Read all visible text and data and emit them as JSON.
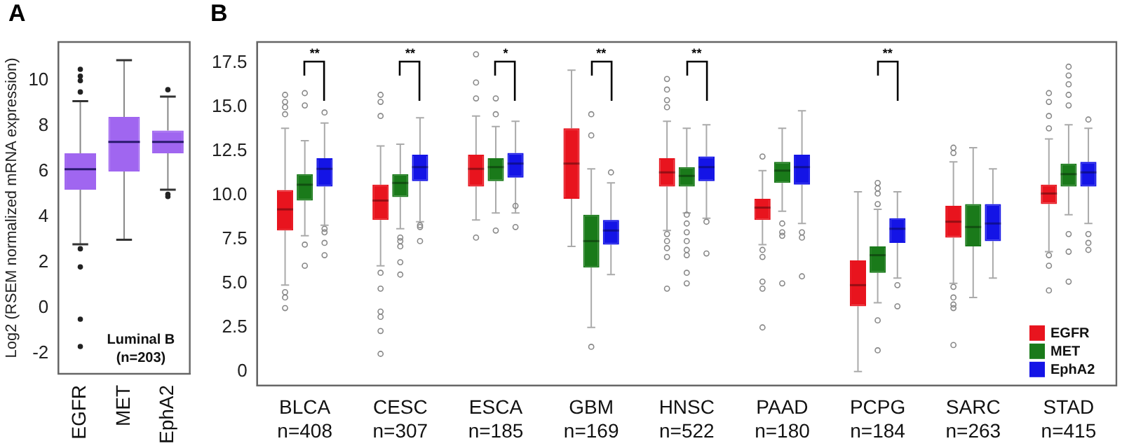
{
  "chart_data": [
    {
      "type": "box",
      "title": "A",
      "ylabel": "Log2 (RSEM normalized mRNA expression)",
      "categories": [
        "EGFR",
        "MET",
        "EphA2"
      ],
      "color": "#a066f0",
      "boxes": [
        {
          "low": 2.8,
          "q1": 5.2,
          "median": 6.1,
          "q3": 6.8,
          "high": 9.1,
          "outliers": [
            10.5,
            10.2,
            10.0,
            9.5,
            2.6,
            1.8,
            -0.5,
            -1.7
          ]
        },
        {
          "low": 3.0,
          "q1": 6.0,
          "median": 7.3,
          "q3": 8.4,
          "high": 10.9
        },
        {
          "low": 5.2,
          "q1": 6.8,
          "median": 7.3,
          "q3": 7.8,
          "high": 9.3,
          "outliers": [
            9.6,
            5.0,
            4.9
          ]
        }
      ],
      "ylim": [
        -2.9,
        11.7
      ],
      "yticks": [
        -2,
        0,
        2,
        4,
        6,
        8,
        10
      ],
      "grid": false,
      "legend": false,
      "annotations": [
        "Luminal B\n(n=203)"
      ]
    },
    {
      "type": "box",
      "title": "B",
      "categories": [
        "BLCA\nn=408",
        "CESC\nn=307",
        "ESCA\nn=185",
        "GBM\nn=169",
        "HNSC\nn=522",
        "PAAD\nn=180",
        "PCPG\nn=184",
        "SARC\nn=263",
        "STAD\nn=415"
      ],
      "series": [
        {
          "name": "EGFR",
          "color": "#e8141e",
          "boxes": [
            {
              "low": 4.9,
              "q1": 8.0,
              "median": 9.2,
              "q3": 10.3,
              "high": 13.8,
              "outliers": [
                15.7,
                15.3,
                15.0,
                14.6,
                4.5,
                4.2,
                3.6
              ]
            },
            {
              "low": 6.0,
              "q1": 8.6,
              "median": 9.7,
              "q3": 10.6,
              "high": 12.8,
              "outliers": [
                15.7,
                15.3,
                14.5,
                5.6,
                4.7,
                3.4,
                3.1,
                2.3,
                1.0
              ]
            },
            {
              "low": 8.6,
              "q1": 10.5,
              "median": 11.5,
              "q3": 12.3,
              "high": 14.5,
              "outliers": [
                18.0,
                16.4,
                15.5,
                7.6
              ]
            },
            {
              "low": 7.1,
              "q1": 9.8,
              "median": 11.8,
              "q3": 13.8,
              "high": 17.1
            },
            {
              "low": 8.0,
              "q1": 10.5,
              "median": 11.3,
              "q3": 12.1,
              "high": 14.2,
              "outliers": [
                16.6,
                16.0,
                15.4,
                15.0,
                7.8,
                7.4,
                7.0,
                6.5,
                4.7
              ]
            },
            {
              "low": 7.2,
              "q1": 8.6,
              "median": 9.3,
              "q3": 9.8,
              "high": 11.4,
              "outliers": [
                12.2,
                6.9,
                6.5,
                5.1,
                4.7,
                2.5
              ]
            },
            {
              "low": 0.0,
              "q1": 3.7,
              "median": 4.9,
              "q3": 6.3,
              "high": 10.2
            },
            {
              "low": 5.0,
              "q1": 7.6,
              "median": 8.5,
              "q3": 9.4,
              "high": 11.9,
              "outliers": [
                12.7,
                12.4,
                4.8,
                4.2,
                3.8,
                3.6,
                1.5
              ]
            },
            {
              "low": 6.8,
              "q1": 9.5,
              "median": 10.1,
              "q3": 10.6,
              "high": 13.2,
              "outliers": [
                15.8,
                15.3,
                14.5,
                13.8,
                6.6,
                6.0,
                4.6
              ]
            }
          ]
        },
        {
          "name": "MET",
          "color": "#1a7a1a",
          "boxes": [
            {
              "low": 7.7,
              "q1": 9.7,
              "median": 10.6,
              "q3": 11.2,
              "high": 13.1,
              "outliers": [
                15.8,
                15.1,
                7.2,
                6.0
              ]
            },
            {
              "low": 8.1,
              "q1": 9.9,
              "median": 10.7,
              "q3": 11.2,
              "high": 12.9,
              "outliers": [
                7.6,
                7.4,
                7.1,
                6.2,
                5.5
              ]
            },
            {
              "low": 9.0,
              "q1": 10.8,
              "median": 11.6,
              "q3": 12.1,
              "high": 13.9,
              "outliers": [
                15.5,
                14.6,
                8.0
              ]
            },
            {
              "low": 2.5,
              "q1": 5.9,
              "median": 7.4,
              "q3": 8.9,
              "high": 11.5,
              "outliers": [
                14.6,
                13.4,
                1.4
              ]
            },
            {
              "low": 9.0,
              "q1": 10.5,
              "median": 11.1,
              "q3": 11.6,
              "high": 13.8,
              "outliers": [
                8.9,
                8.4,
                7.9,
                7.4,
                6.9,
                6.6,
                5.6,
                5.0
              ]
            },
            {
              "low": 9.1,
              "q1": 10.7,
              "median": 11.4,
              "q3": 11.9,
              "high": 13.8,
              "outliers": [
                8.4,
                7.9,
                7.7,
                5.0
              ]
            },
            {
              "low": 3.9,
              "q1": 5.6,
              "median": 6.6,
              "q3": 7.1,
              "high": 9.2,
              "outliers": [
                10.7,
                10.4,
                10.1,
                9.5,
                2.9,
                1.2
              ]
            },
            {
              "low": 4.2,
              "q1": 7.1,
              "median": 8.2,
              "q3": 9.5,
              "high": 12.7
            },
            {
              "low": 8.9,
              "q1": 10.5,
              "median": 11.2,
              "q3": 11.8,
              "high": 14.0,
              "outliers": [
                17.3,
                16.8,
                16.3,
                15.7,
                15.1,
                7.8,
                6.8,
                5.1
              ]
            }
          ]
        },
        {
          "name": "EphA2",
          "color": "#1414e6",
          "boxes": [
            {
              "low": 8.3,
              "q1": 10.5,
              "median": 11.5,
              "q3": 12.1,
              "high": 14.1,
              "outliers": [
                14.7,
                8.1,
                7.9,
                7.3,
                6.6
              ]
            },
            {
              "low": 8.5,
              "q1": 10.8,
              "median": 11.6,
              "q3": 12.3,
              "high": 14.4,
              "outliers": [
                8.3,
                8.2,
                7.4
              ]
            },
            {
              "low": 9.0,
              "q1": 11.0,
              "median": 11.8,
              "q3": 12.4,
              "high": 14.2,
              "outliers": [
                9.4,
                8.2
              ]
            },
            {
              "low": 5.5,
              "q1": 7.2,
              "median": 8.0,
              "q3": 8.6,
              "high": 10.7,
              "outliers": [
                11.3
              ]
            },
            {
              "low": 8.7,
              "q1": 10.8,
              "median": 11.6,
              "q3": 12.2,
              "high": 14.0,
              "outliers": [
                8.5,
                6.7
              ]
            },
            {
              "low": 8.4,
              "q1": 10.6,
              "median": 11.6,
              "q3": 12.3,
              "high": 14.8,
              "outliers": [
                7.9,
                7.6,
                5.4
              ]
            },
            {
              "low": 5.3,
              "q1": 7.3,
              "median": 8.1,
              "q3": 8.7,
              "high": 10.2,
              "outliers": [
                4.9,
                3.7
              ]
            },
            {
              "low": 5.3,
              "q1": 7.4,
              "median": 8.4,
              "q3": 9.5,
              "high": 11.5
            },
            {
              "low": 8.4,
              "q1": 10.5,
              "median": 11.3,
              "q3": 11.9,
              "high": 13.8,
              "outliers": [
                14.3,
                7.8,
                7.3,
                6.9
              ]
            }
          ]
        }
      ],
      "ylim": [
        -0.8,
        18.7
      ],
      "yticks": [
        0,
        {
          "value": 2.5,
          "label": "2.5"
        },
        {
          "value": 5,
          "label": "5.0"
        },
        {
          "value": 7.5,
          "label": "7.5"
        },
        {
          "value": 10,
          "label": "10.0"
        },
        {
          "value": 12.5,
          "label": "12.5"
        },
        {
          "value": 15,
          "label": "15.0"
        },
        {
          "value": 17.5,
          "label": "17.5"
        }
      ],
      "grid": false,
      "legend": "bottom right",
      "annotations": [
        "**",
        "**",
        "*",
        "**",
        "**",
        "**"
      ]
    }
  ]
}
